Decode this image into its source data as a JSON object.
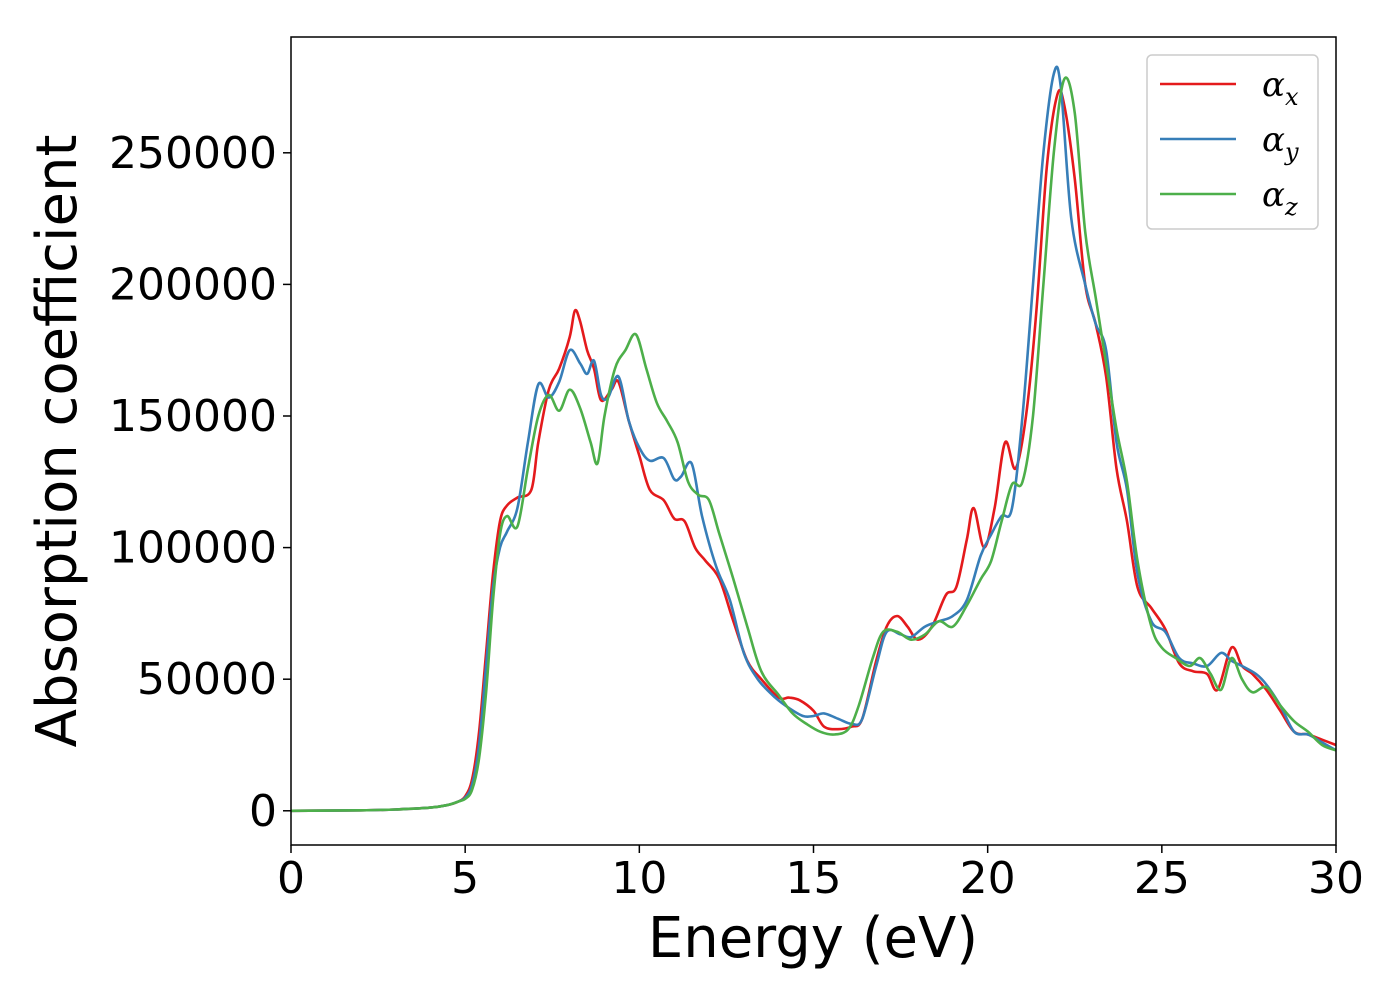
{
  "chart_data": {
    "type": "line",
    "title": "",
    "xlabel": "Energy (eV)",
    "ylabel": "Absorption coefficient",
    "xlim": [
      0,
      30
    ],
    "ylim": [
      -13000,
      294000
    ],
    "xticks": [
      0,
      5,
      10,
      15,
      20,
      25,
      30
    ],
    "yticks": [
      0,
      50000,
      100000,
      150000,
      200000,
      250000
    ],
    "grid": false,
    "legend_position": "top-right",
    "series": [
      {
        "name": "αx",
        "name_base": "α",
        "name_sub": "x",
        "color": "#e41a1c",
        "x": [
          0,
          2,
          3,
          4,
          4.5,
          4.8,
          5.0,
          5.2,
          5.4,
          5.6,
          5.8,
          6.0,
          6.2,
          6.5,
          6.9,
          7.1,
          7.4,
          7.7,
          8.0,
          8.15,
          8.3,
          8.5,
          8.7,
          8.9,
          9.2,
          9.4,
          9.7,
          10.0,
          10.3,
          10.7,
          11.0,
          11.3,
          11.6,
          11.9,
          12.3,
          12.7,
          13.1,
          13.5,
          14.0,
          14.3,
          14.6,
          15.0,
          15.3,
          15.7,
          16.1,
          16.4,
          16.8,
          17.1,
          17.4,
          17.7,
          18.0,
          18.4,
          18.8,
          19.1,
          19.4,
          19.6,
          19.9,
          20.2,
          20.5,
          20.8,
          21.1,
          21.4,
          21.7,
          22.0,
          22.2,
          22.5,
          22.8,
          23.1,
          23.4,
          23.7,
          24.0,
          24.3,
          24.7,
          25.1,
          25.5,
          25.9,
          26.3,
          26.6,
          27.0,
          27.3,
          27.6,
          28.0,
          28.4,
          28.8,
          29.2,
          29.6,
          30
        ],
        "y": [
          0,
          200,
          500,
          1200,
          2200,
          3500,
          5500,
          12000,
          30000,
          60000,
          90000,
          110000,
          116000,
          119000,
          122000,
          140000,
          160000,
          168000,
          180000,
          190000,
          186000,
          175000,
          168000,
          156000,
          160000,
          163000,
          148000,
          135000,
          122000,
          118000,
          111000,
          110000,
          100000,
          95000,
          88000,
          72000,
          57000,
          50000,
          43000,
          43000,
          42000,
          38000,
          32000,
          31000,
          32000,
          35000,
          57000,
          70000,
          74000,
          70000,
          65000,
          70000,
          82000,
          85000,
          103000,
          115000,
          100000,
          115000,
          140000,
          130000,
          150000,
          190000,
          245000,
          272000,
          268000,
          240000,
          200000,
          185000,
          165000,
          130000,
          110000,
          85000,
          77000,
          69000,
          56000,
          53000,
          52000,
          46000,
          62000,
          55000,
          52000,
          46000,
          38000,
          30000,
          29000,
          27000,
          25000
        ]
      },
      {
        "name": "αy",
        "name_base": "α",
        "name_sub": "y",
        "color": "#377eb8",
        "x": [
          0,
          2,
          3,
          4,
          4.5,
          4.8,
          5.0,
          5.2,
          5.4,
          5.6,
          5.8,
          6.0,
          6.2,
          6.5,
          6.8,
          7.1,
          7.4,
          7.7,
          8.0,
          8.3,
          8.5,
          8.7,
          8.9,
          9.1,
          9.4,
          9.7,
          10.0,
          10.3,
          10.7,
          11.0,
          11.2,
          11.5,
          11.8,
          12.2,
          12.6,
          13.0,
          13.4,
          13.9,
          14.3,
          14.7,
          15.0,
          15.3,
          15.7,
          16.1,
          16.4,
          16.8,
          17.1,
          17.5,
          17.8,
          18.2,
          18.6,
          19.0,
          19.4,
          19.8,
          20.1,
          20.4,
          20.7,
          21.0,
          21.3,
          21.6,
          21.9,
          22.1,
          22.4,
          22.8,
          23.1,
          23.4,
          23.7,
          24.0,
          24.3,
          24.7,
          25.1,
          25.5,
          25.9,
          26.3,
          26.7,
          27.0,
          27.3,
          27.7,
          28.0,
          28.4,
          28.8,
          29.2,
          29.6,
          30
        ],
        "y": [
          0,
          200,
          500,
          1200,
          2200,
          3500,
          5000,
          10000,
          25000,
          55000,
          85000,
          100000,
          106000,
          115000,
          140000,
          162000,
          157000,
          163000,
          175000,
          170000,
          166000,
          171000,
          158000,
          157000,
          165000,
          148000,
          138000,
          133000,
          134000,
          126000,
          127000,
          132000,
          112000,
          93000,
          80000,
          60000,
          50000,
          43000,
          39000,
          36000,
          36000,
          37000,
          35000,
          33000,
          35000,
          55000,
          68000,
          67000,
          66000,
          70000,
          72000,
          74000,
          80000,
          97000,
          105000,
          112000,
          115000,
          150000,
          200000,
          250000,
          280000,
          275000,
          225000,
          200000,
          185000,
          175000,
          140000,
          122000,
          90000,
          72000,
          68000,
          58000,
          56000,
          55000,
          60000,
          57000,
          55000,
          52000,
          48000,
          40000,
          30000,
          29000,
          26000,
          23000
        ]
      },
      {
        "name": "αz",
        "name_base": "α",
        "name_sub": "z",
        "color": "#4daf4a",
        "x": [
          0,
          2,
          3,
          4,
          4.5,
          4.8,
          5.0,
          5.2,
          5.4,
          5.6,
          5.8,
          6.0,
          6.2,
          6.5,
          6.8,
          7.1,
          7.4,
          7.7,
          8.0,
          8.3,
          8.6,
          8.8,
          9.0,
          9.3,
          9.6,
          9.9,
          10.2,
          10.5,
          10.8,
          11.1,
          11.4,
          11.7,
          12.0,
          12.3,
          12.7,
          13.1,
          13.5,
          14.0,
          14.4,
          14.8,
          15.2,
          15.6,
          16.0,
          16.3,
          16.7,
          17.0,
          17.4,
          17.8,
          18.2,
          18.6,
          19.0,
          19.4,
          19.8,
          20.1,
          20.4,
          20.7,
          21.0,
          21.3,
          21.6,
          21.9,
          22.2,
          22.5,
          22.8,
          23.1,
          23.4,
          23.7,
          24.0,
          24.3,
          24.7,
          25.0,
          25.4,
          25.8,
          26.1,
          26.4,
          26.7,
          27.0,
          27.3,
          27.6,
          28.0,
          28.4,
          28.8,
          29.2,
          29.6,
          30
        ],
        "y": [
          0,
          200,
          500,
          1200,
          2200,
          3500,
          4500,
          8000,
          20000,
          45000,
          80000,
          105000,
          112000,
          108000,
          130000,
          150000,
          158000,
          152000,
          160000,
          153000,
          140000,
          132000,
          150000,
          168000,
          175000,
          181000,
          168000,
          155000,
          148000,
          140000,
          125000,
          120000,
          118000,
          105000,
          88000,
          70000,
          53000,
          44000,
          37000,
          33000,
          30000,
          29000,
          31000,
          40000,
          58000,
          68000,
          68000,
          65000,
          67000,
          72000,
          70000,
          78000,
          88000,
          95000,
          110000,
          124000,
          125000,
          150000,
          200000,
          250000,
          278000,
          265000,
          220000,
          195000,
          170000,
          145000,
          125000,
          95000,
          70000,
          62000,
          58000,
          55000,
          58000,
          52000,
          46000,
          58000,
          50000,
          45000,
          47000,
          40000,
          34000,
          30000,
          25000,
          23000
        ]
      }
    ]
  }
}
